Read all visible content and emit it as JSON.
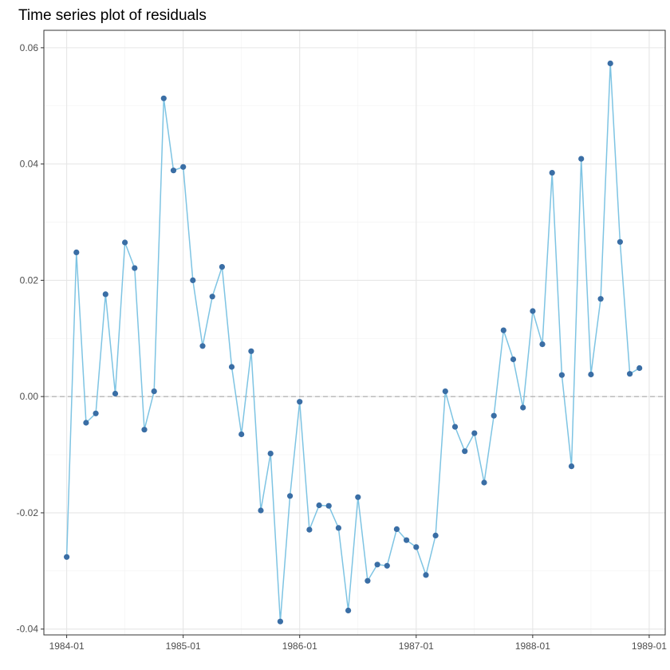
{
  "chart_data": {
    "type": "line",
    "title": "Time series plot of residuals",
    "xlabel": "",
    "ylabel": "",
    "x_ticks": [
      "1984-01",
      "1985-01",
      "1986-01",
      "1987-01",
      "1988-01",
      "1989-01"
    ],
    "y_ticks": [
      "-0.04",
      "-0.02",
      "0.00",
      "0.02",
      "0.04",
      "0.06"
    ],
    "ylim": [
      -0.041,
      0.063
    ],
    "xlim": [
      "1983-10",
      "1989-03"
    ],
    "grid": true,
    "reference_line": {
      "y": 0,
      "style": "dashed",
      "color": "#aaaaaa"
    },
    "line_color": "#7ec4e3",
    "point_color": "#3a6ea5",
    "x": [
      "1984-01",
      "1984-02",
      "1984-03",
      "1984-04",
      "1984-05",
      "1984-06",
      "1984-07",
      "1984-08",
      "1984-09",
      "1984-10",
      "1984-11",
      "1984-12",
      "1985-01",
      "1985-02",
      "1985-03",
      "1985-04",
      "1985-05",
      "1985-06",
      "1985-07",
      "1985-08",
      "1985-09",
      "1985-10",
      "1985-11",
      "1985-12",
      "1986-01",
      "1986-02",
      "1986-03",
      "1986-04",
      "1986-05",
      "1986-06",
      "1986-07",
      "1986-08",
      "1986-09",
      "1986-10",
      "1986-11",
      "1986-12",
      "1987-01",
      "1987-02",
      "1987-03",
      "1987-04",
      "1987-05",
      "1987-06",
      "1987-07",
      "1987-08",
      "1987-09",
      "1987-10",
      "1987-11",
      "1987-12",
      "1988-01",
      "1988-02",
      "1988-03",
      "1988-04",
      "1988-05",
      "1988-06",
      "1988-07",
      "1988-08",
      "1988-09",
      "1988-10",
      "1988-11",
      "1988-12"
    ],
    "values": [
      -0.0276,
      0.0248,
      -0.0045,
      -0.0029,
      0.0176,
      0.0005,
      0.0265,
      0.0221,
      -0.0057,
      0.0009,
      0.0513,
      0.0389,
      0.0395,
      0.02,
      0.0087,
      0.0172,
      0.0223,
      0.0051,
      -0.0065,
      0.0078,
      -0.0196,
      -0.0098,
      -0.0387,
      -0.0171,
      -0.0009,
      -0.0229,
      -0.0187,
      -0.0188,
      -0.0226,
      -0.0368,
      -0.0173,
      -0.0317,
      -0.0289,
      -0.0291,
      -0.0228,
      -0.0247,
      -0.0259,
      -0.0307,
      -0.0239,
      0.0009,
      -0.0052,
      -0.0094,
      -0.0063,
      -0.0148,
      -0.0033,
      0.0114,
      0.0064,
      -0.0019,
      0.0147,
      0.009,
      0.0385,
      0.0037,
      -0.012,
      0.0409,
      0.0038,
      0.0168,
      0.0573,
      0.0266,
      0.0039,
      0.0049
    ]
  }
}
